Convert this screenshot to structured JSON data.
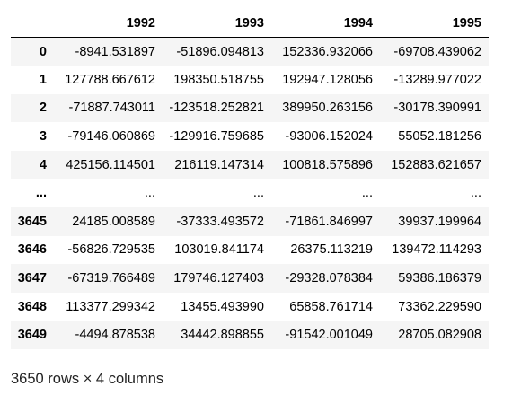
{
  "columns": [
    "1992",
    "1993",
    "1994",
    "1995"
  ],
  "rows": [
    {
      "index": "0",
      "values": [
        "-8941.531897",
        "-51896.094813",
        "152336.932066",
        "-69708.439062"
      ]
    },
    {
      "index": "1",
      "values": [
        "127788.667612",
        "198350.518755",
        "192947.128056",
        "-13289.977022"
      ]
    },
    {
      "index": "2",
      "values": [
        "-71887.743011",
        "-123518.252821",
        "389950.263156",
        "-30178.390991"
      ]
    },
    {
      "index": "3",
      "values": [
        "-79146.060869",
        "-129916.759685",
        "-93006.152024",
        "55052.181256"
      ]
    },
    {
      "index": "4",
      "values": [
        "425156.114501",
        "216119.147314",
        "100818.575896",
        "152883.621657"
      ]
    },
    {
      "index": "...",
      "values": [
        "...",
        "...",
        "...",
        "..."
      ]
    },
    {
      "index": "3645",
      "values": [
        "24185.008589",
        "-37333.493572",
        "-71861.846997",
        "39937.199964"
      ]
    },
    {
      "index": "3646",
      "values": [
        "-56826.729535",
        "103019.841174",
        "26375.113219",
        "139472.114293"
      ]
    },
    {
      "index": "3647",
      "values": [
        "-67319.766489",
        "179746.127403",
        "-29328.078384",
        "59386.186379"
      ]
    },
    {
      "index": "3648",
      "values": [
        "113377.299342",
        "13455.493990",
        "65858.761714",
        "73362.229590"
      ]
    },
    {
      "index": "3649",
      "values": [
        "-4494.878538",
        "34442.898855",
        "-91542.001049",
        "28705.082908"
      ]
    }
  ],
  "shape_caption": "3650 rows × 4 columns",
  "colors": {
    "odd_row_background": "#f5f5f5",
    "even_row_background": "#ffffff",
    "header_rule": "#000000",
    "text": "#000000"
  }
}
